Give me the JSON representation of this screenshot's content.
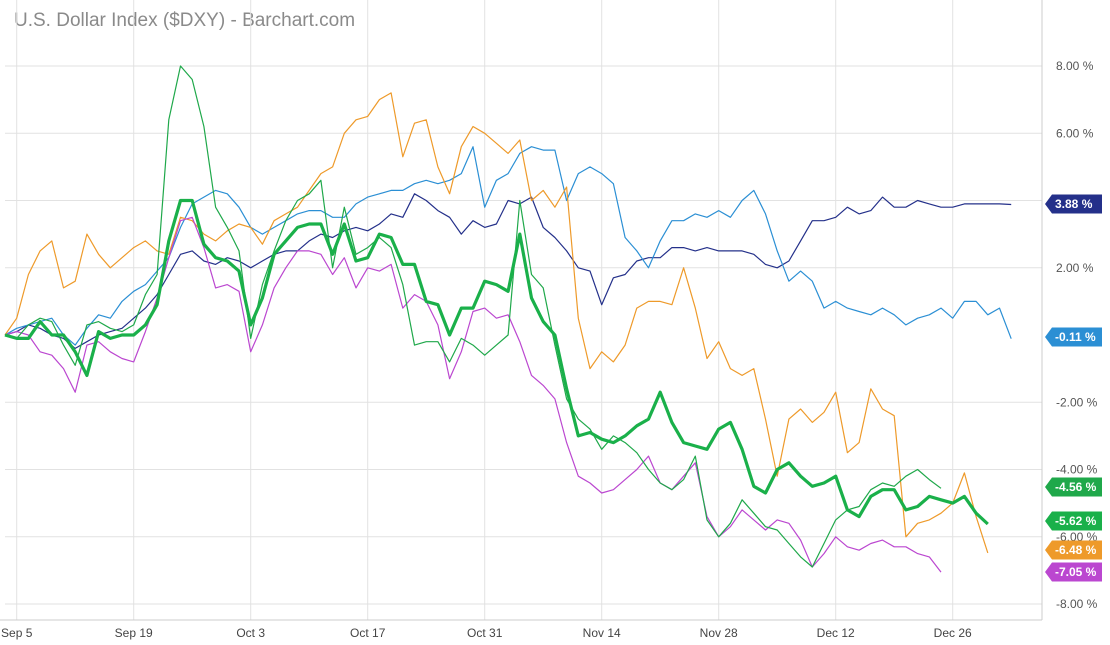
{
  "title": "U.S. Dollar Index ($DXY) - Barchart.com",
  "chart_data": {
    "type": "line",
    "title": "U.S. Dollar Index ($DXY) - Barchart.com",
    "xlabel": "",
    "ylabel": "",
    "ylim": [
      -8,
      8
    ],
    "y_ticks": [
      "8.00 %",
      "6.00 %",
      "4.00 %",
      "2.00 %",
      "-2.00 %",
      "-4.00 %",
      "-6.00 %",
      "-8.00 %"
    ],
    "y_tick_values": [
      8,
      6,
      4,
      2,
      -2,
      -4,
      -6,
      -8
    ],
    "x_ticks": [
      "Sep 5",
      "Sep 19",
      "Oct 3",
      "Oct 17",
      "Oct 31",
      "Nov 14",
      "Nov 28",
      "Dec 12",
      "Dec 26"
    ],
    "x_tick_index": [
      1,
      11,
      21,
      31,
      41,
      51,
      61,
      71,
      81
    ],
    "grid": true,
    "series": [
      {
        "color": "#24308a",
        "width": 1.2,
        "label": "3.88 %",
        "values": [
          0,
          0.1,
          0.3,
          0.2,
          0,
          -0.1,
          -0.4,
          -0.2,
          0,
          0.1,
          0.2,
          0.5,
          0.8,
          1.2,
          1.8,
          2.4,
          2.5,
          2.2,
          2.1,
          2.3,
          2.2,
          2.0,
          2.2,
          2.4,
          2.5,
          2.5,
          2.8,
          3.0,
          2.9,
          3.1,
          3.2,
          3.1,
          3.3,
          3.6,
          3.5,
          4.2,
          4.0,
          3.7,
          3.5,
          3.0,
          3.4,
          3.2,
          3.3,
          4.0,
          3.9,
          4.1,
          3.2,
          2.9,
          2.5,
          2.0,
          1.9,
          0.9,
          1.7,
          1.8,
          2.2,
          2.3,
          2.3,
          2.6,
          2.6,
          2.5,
          2.6,
          2.5,
          2.5,
          2.5,
          2.4,
          2.1,
          2.0,
          2.2,
          2.8,
          3.4,
          3.4,
          3.5,
          3.8,
          3.6,
          3.7,
          4.1,
          3.8,
          3.8,
          4.0,
          3.9,
          3.8,
          3.8,
          3.9,
          3.9,
          3.9,
          3.9,
          3.88
        ]
      },
      {
        "color": "#2b8fd4",
        "width": 1.2,
        "label": "-0.11 %",
        "values": [
          0,
          0.2,
          0.3,
          0.4,
          0.5,
          0,
          -0.3,
          0.2,
          0.6,
          0.5,
          1,
          1.3,
          1.5,
          1.9,
          2.3,
          3.2,
          3.9,
          4.1,
          4.3,
          4.2,
          3.8,
          3.2,
          3.0,
          3.2,
          3.4,
          3.6,
          3.7,
          3.7,
          3.5,
          3.5,
          3.9,
          4.1,
          4.2,
          4.3,
          4.3,
          4.5,
          4.6,
          4.5,
          4.6,
          4.8,
          5.6,
          3.8,
          4.6,
          4.8,
          5.4,
          5.6,
          5.5,
          5.5,
          4.0,
          4.8,
          5.0,
          4.8,
          4.5,
          2.9,
          2.5,
          2.0,
          2.8,
          3.4,
          3.4,
          3.6,
          3.5,
          3.7,
          3.5,
          4.0,
          4.3,
          3.6,
          2.5,
          1.6,
          1.9,
          1.6,
          0.8,
          1.0,
          0.8,
          0.7,
          0.6,
          0.8,
          0.6,
          0.3,
          0.5,
          0.6,
          0.8,
          0.5,
          1.0,
          1.0,
          0.6,
          0.8,
          -0.11
        ]
      },
      {
        "color": "#ee9a2a",
        "width": 1.2,
        "label": "-6.48 %",
        "values": [
          0,
          0.5,
          1.8,
          2.5,
          2.8,
          1.4,
          1.6,
          3.0,
          2.4,
          2.0,
          2.3,
          2.6,
          2.8,
          2.5,
          2.4,
          3.5,
          3.4,
          3.0,
          2.8,
          3.1,
          3.3,
          3.2,
          2.7,
          3.4,
          3.6,
          3.8,
          4.3,
          4.8,
          5.0,
          6.0,
          6.4,
          6.5,
          7.0,
          7.2,
          5.3,
          6.3,
          6.4,
          5.0,
          4.2,
          5.6,
          6.2,
          6.0,
          5.7,
          5.4,
          5.8,
          4.0,
          4.3,
          3.8,
          4.4,
          0.5,
          -1.0,
          -0.5,
          -0.8,
          -0.3,
          0.8,
          1.0,
          1.0,
          0.9,
          2.0,
          0.8,
          -0.7,
          -0.2,
          -1.0,
          -1.2,
          -1.0,
          -2.5,
          -4.2,
          -2.5,
          -2.2,
          -2.6,
          -2.3,
          -1.7,
          -3.5,
          -3.2,
          -1.6,
          -2.2,
          -2.4,
          -6.0,
          -5.6,
          -5.5,
          -5.3,
          -5.0,
          -4.1,
          -5.4,
          -6.48
        ]
      },
      {
        "color": "#bb47d0",
        "width": 1.2,
        "label": "-7.05 %",
        "values": [
          0,
          0.1,
          0,
          -0.5,
          -0.6,
          -1.0,
          -1.7,
          -0.3,
          -0.2,
          -0.5,
          -0.7,
          -0.8,
          0.1,
          1.1,
          2.3,
          3.4,
          3.5,
          2.6,
          1.4,
          1.5,
          1.3,
          -0.5,
          0.3,
          1.4,
          2.0,
          2.5,
          2.5,
          2.4,
          1.8,
          2.3,
          1.4,
          2.0,
          1.9,
          2.1,
          0.8,
          1.2,
          1.0,
          0.3,
          -1.3,
          -0.5,
          0.7,
          0.8,
          0.5,
          0.6,
          -0.2,
          -1.2,
          -1.5,
          -1.9,
          -3.2,
          -4.2,
          -4.4,
          -4.7,
          -4.6,
          -4.3,
          -4.0,
          -3.6,
          -4.4,
          -4.6,
          -4.2,
          -3.8,
          -5.4,
          -6.0,
          -5.7,
          -5.2,
          -5.5,
          -5.8,
          -5.5,
          -5.6,
          -6.1,
          -6.9,
          -6.5,
          -6.0,
          -6.3,
          -6.4,
          -6.2,
          -6.1,
          -6.3,
          -6.3,
          -6.5,
          -6.6,
          -7.05
        ]
      },
      {
        "color": "#1fa84a",
        "width": 1.2,
        "label": "-4.56 %",
        "values": [
          0,
          -0.1,
          0.3,
          0.5,
          0.4,
          -0.3,
          -0.9,
          0.3,
          0.4,
          0.2,
          0.1,
          0.3,
          1.2,
          1.8,
          6.4,
          8.0,
          7.6,
          6.2,
          3.8,
          3.2,
          2.5,
          -0.1,
          1.5,
          2.5,
          3.4,
          4.0,
          4.2,
          4.6,
          2.0,
          3.8,
          2.4,
          2.6,
          2.9,
          2.6,
          1.5,
          -0.3,
          -0.2,
          -0.2,
          -0.8,
          -0.1,
          -0.3,
          -0.6,
          -0.3,
          0,
          4.0,
          1.8,
          1.4,
          -0.3,
          -1.9,
          -2.5,
          -2.8,
          -3.4,
          -3.0,
          -3.2,
          -3.5,
          -4.0,
          -4.4,
          -4.6,
          -4.3,
          -3.6,
          -5.5,
          -6.0,
          -5.6,
          -4.9,
          -5.3,
          -5.7,
          -5.8,
          -6.2,
          -6.6,
          -6.9,
          -6.2,
          -5.5,
          -5.2,
          -5.1,
          -4.6,
          -4.4,
          -4.5,
          -4.2,
          -4.0,
          -4.3,
          -4.56
        ]
      },
      {
        "color": "#1ab04a",
        "width": 3.2,
        "label": "-5.62 %",
        "values": [
          0,
          -0.1,
          -0.1,
          0.4,
          0,
          0,
          -0.5,
          -1.2,
          0.1,
          -0.1,
          0,
          0,
          0.3,
          0.9,
          2.8,
          4.0,
          4.0,
          2.7,
          2.3,
          2.2,
          1.9,
          0.3,
          1.1,
          2.4,
          2.8,
          3.2,
          3.3,
          3.3,
          2.4,
          3.3,
          2.2,
          2.3,
          3.0,
          2.9,
          2.1,
          2.1,
          1.0,
          0.9,
          0,
          0.8,
          0.8,
          1.6,
          1.5,
          1.3,
          3.0,
          1.1,
          0.4,
          0,
          -1.6,
          -3.0,
          -2.9,
          -3.1,
          -3.2,
          -3.0,
          -2.7,
          -2.5,
          -1.7,
          -2.6,
          -3.2,
          -3.3,
          -3.4,
          -2.8,
          -2.6,
          -3.4,
          -4.5,
          -4.7,
          -4.0,
          -3.8,
          -4.2,
          -4.5,
          -4.4,
          -4.2,
          -5.2,
          -5.4,
          -4.8,
          -4.6,
          -4.6,
          -5.2,
          -5.1,
          -4.8,
          -4.9,
          -5.0,
          -4.8,
          -5.3,
          -5.62
        ]
      }
    ],
    "end_labels": [
      {
        "label": "3.88 %",
        "color": "#24308a",
        "value": 3.88
      },
      {
        "label": "-0.11 %",
        "color": "#2b8fd4",
        "value": -0.11
      },
      {
        "label": "-4.56 %",
        "color": "#1fa84a",
        "value": -4.56
      },
      {
        "label": "-5.62 %",
        "color": "#1ab04a",
        "value": -5.62
      },
      {
        "label": "-6.48 %",
        "color": "#ee9a2a",
        "value": -6.48
      },
      {
        "label": "-7.05 %",
        "color": "#bb47d0",
        "value": -7.05
      }
    ]
  }
}
